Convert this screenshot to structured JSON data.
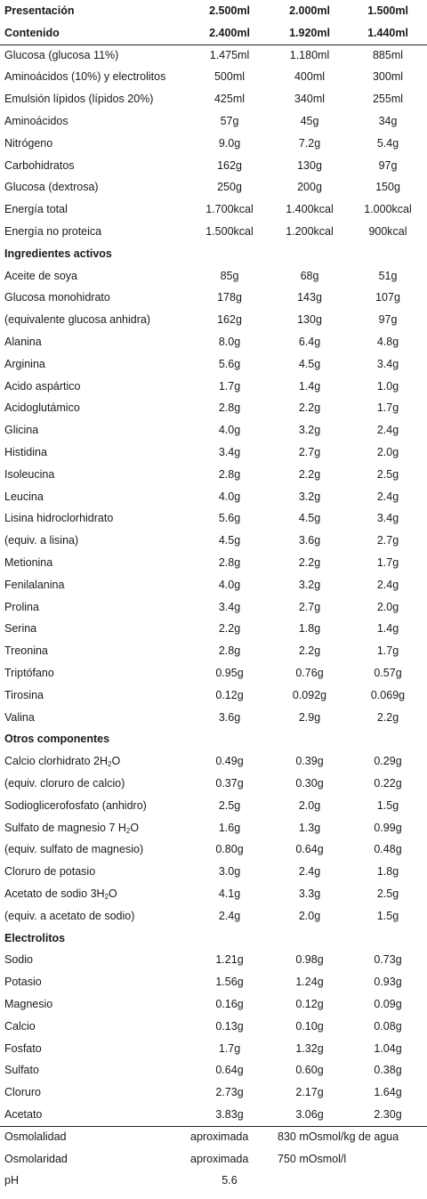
{
  "rows": [
    {
      "label": "Presentación",
      "v1": "2.500ml",
      "v2": "2.000ml",
      "v3": "1.500ml",
      "kind": "header"
    },
    {
      "label": "Contenido",
      "v1": "2.400ml",
      "v2": "1.920ml",
      "v3": "1.440ml",
      "kind": "header-sep"
    },
    {
      "label": "Glucosa (glucosa 11%)",
      "v1": "1.475ml",
      "v2": "1.180ml",
      "v3": "885ml"
    },
    {
      "label": "Aminoácidos (10%) y electrolitos",
      "v1": "500ml",
      "v2": "400ml",
      "v3": "300ml"
    },
    {
      "label": "Emulsión lípidos (lípidos 20%)",
      "v1": "425ml",
      "v2": "340ml",
      "v3": "255ml"
    },
    {
      "label": "Aminoácidos",
      "v1": "57g",
      "v2": "45g",
      "v3": "34g"
    },
    {
      "label": "Nitrógeno",
      "v1": "9.0g",
      "v2": "7.2g",
      "v3": "5.4g"
    },
    {
      "label": "Carbohidratos",
      "v1": "162g",
      "v2": "130g",
      "v3": "97g"
    },
    {
      "label": "Glucosa (dextrosa)",
      "v1": "250g",
      "v2": "200g",
      "v3": "150g"
    },
    {
      "label": "Energía total",
      "v1": "1.700kcal",
      "v2": "1.400kcal",
      "v3": "1.000kcal"
    },
    {
      "label": "Energía no proteica",
      "v1": "1.500kcal",
      "v2": "1.200kcal",
      "v3": "900kcal"
    },
    {
      "label": "Ingredientes activos",
      "kind": "section"
    },
    {
      "label": "Aceite de soya",
      "v1": "85g",
      "v2": "68g",
      "v3": "51g"
    },
    {
      "label": "Glucosa monohidrato",
      "v1": "178g",
      "v2": "143g",
      "v3": "107g"
    },
    {
      "label": "(equivalente glucosa anhidra)",
      "v1": "162g",
      "v2": "130g",
      "v3": "97g"
    },
    {
      "label": "Alanina",
      "v1": "8.0g",
      "v2": "6.4g",
      "v3": "4.8g"
    },
    {
      "label": "Arginina",
      "v1": "5.6g",
      "v2": "4.5g",
      "v3": "3.4g"
    },
    {
      "label": "Acido aspártico",
      "v1": "1.7g",
      "v2": "1.4g",
      "v3": "1.0g"
    },
    {
      "label": "Acidoglutámico",
      "v1": "2.8g",
      "v2": "2.2g",
      "v3": "1.7g"
    },
    {
      "label": "Glicina",
      "v1": "4.0g",
      "v2": "3.2g",
      "v3": "2.4g"
    },
    {
      "label": "Histidina",
      "v1": "3.4g",
      "v2": "2.7g",
      "v3": "2.0g"
    },
    {
      "label": "Isoleucina",
      "v1": "2.8g",
      "v2": "2.2g",
      "v3": "2.5g"
    },
    {
      "label": "Leucina",
      "v1": "4.0g",
      "v2": "3.2g",
      "v3": "2.4g"
    },
    {
      "label": "Lisina hidroclorhidrato",
      "v1": "5.6g",
      "v2": "4.5g",
      "v3": "3.4g"
    },
    {
      "label": "(equiv. a lisina)",
      "v1": "4.5g",
      "v2": "3.6g",
      "v3": "2.7g"
    },
    {
      "label": "Metionina",
      "v1": "2.8g",
      "v2": "2.2g",
      "v3": "1.7g"
    },
    {
      "label": "Fenilalanina",
      "v1": "4.0g",
      "v2": "3.2g",
      "v3": "2.4g"
    },
    {
      "label": "Prolina",
      "v1": "3.4g",
      "v2": "2.7g",
      "v3": "2.0g"
    },
    {
      "label": "Serina",
      "v1": "2.2g",
      "v2": "1.8g",
      "v3": "1.4g"
    },
    {
      "label": "Treonina",
      "v1": "2.8g",
      "v2": "2.2g",
      "v3": "1.7g"
    },
    {
      "label": "Triptófano",
      "v1": "0.95g",
      "v2": "0.76g",
      "v3": "0.57g"
    },
    {
      "label": "Tirosina",
      "v1": "0.12g",
      "v2": "0.092g",
      "v3": "0.069g"
    },
    {
      "label": "Valina",
      "v1": "3.6g",
      "v2": "2.9g",
      "v3": "2.2g"
    },
    {
      "label": "Otros componentes",
      "kind": "section"
    },
    {
      "label": "Calcio clorhidrato 2H",
      "sub": "2",
      "label_after": "O",
      "v1": "0.49g",
      "v2": "0.39g",
      "v3": "0.29g"
    },
    {
      "label": "(equiv. cloruro de calcio)",
      "v1": "0.37g",
      "v2": "0.30g",
      "v3": "0.22g"
    },
    {
      "label": "Sodioglicerofosfato (anhidro)",
      "v1": "2.5g",
      "v2": "2.0g",
      "v3": "1.5g"
    },
    {
      "label": "Sulfato de magnesio 7 H",
      "sub": "2",
      "label_after": "O",
      "v1": "1.6g",
      "v2": "1.3g",
      "v3": "0.99g"
    },
    {
      "label": "(equiv. sulfato de magnesio)",
      "v1": "0.80g",
      "v2": "0.64g",
      "v3": "0.48g"
    },
    {
      "label": "Cloruro de potasio",
      "v1": "3.0g",
      "v2": "2.4g",
      "v3": "1.8g"
    },
    {
      "label": "Acetato de sodio 3H",
      "sub": "2",
      "label_after": "O",
      "v1": "4.1g",
      "v2": "3.3g",
      "v3": "2.5g"
    },
    {
      "label": "(equiv. a acetato de sodio)",
      "v1": "2.4g",
      "v2": "2.0g",
      "v3": "1.5g"
    },
    {
      "label": "Electrolitos",
      "kind": "section"
    },
    {
      "label": "Sodio",
      "v1": "1.21g",
      "v2": "0.98g",
      "v3": "0.73g"
    },
    {
      "label": "Potasio",
      "v1": "1.56g",
      "v2": "1.24g",
      "v3": "0.93g"
    },
    {
      "label": "Magnesio",
      "v1": "0.16g",
      "v2": "0.12g",
      "v3": "0.09g"
    },
    {
      "label": "Calcio",
      "v1": "0.13g",
      "v2": "0.10g",
      "v3": "0.08g"
    },
    {
      "label": "Fosfato",
      "v1": "1.7g",
      "v2": "1.32g",
      "v3": "1.04g"
    },
    {
      "label": "Sulfato",
      "v1": "0.64g",
      "v2": "0.60g",
      "v3": "0.38g"
    },
    {
      "label": "Cloruro",
      "v1": "2.73g",
      "v2": "2.17g",
      "v3": "1.64g"
    },
    {
      "label": "Acetato",
      "v1": "3.83g",
      "v2": "3.06g",
      "v3": "2.30g",
      "kind": "sep"
    },
    {
      "label": "Osmolalidad",
      "v1": "aproximada",
      "v2": "830 mOsmol/kg de agua",
      "kind": "footer"
    },
    {
      "label": "Osmolaridad",
      "v1": "aproximada",
      "v2": "750 mOsmol/l",
      "kind": "footer"
    },
    {
      "label": "pH",
      "v1": "5.6",
      "kind": "centered"
    }
  ]
}
